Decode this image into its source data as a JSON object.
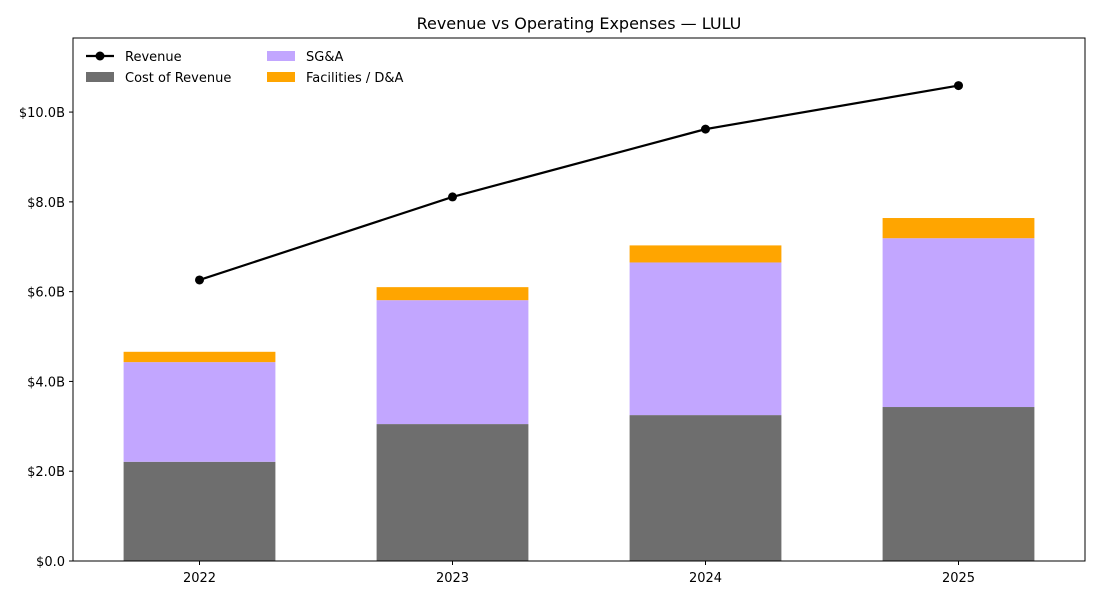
{
  "chart_data": {
    "type": "bar",
    "title": "Revenue vs Operating Expenses — LULU",
    "xlabel": "",
    "ylabel": "",
    "categories": [
      "2022",
      "2023",
      "2024",
      "2025"
    ],
    "ylim": [
      0,
      11.65
    ],
    "yticks": [
      0,
      2,
      4,
      6,
      8,
      10
    ],
    "ytick_labels": [
      "$0.0",
      "$2.0B",
      "$4.0B",
      "$6.0B",
      "$8.0B",
      "$10.0B"
    ],
    "grid": false,
    "legend_position": "top-left",
    "series": [
      {
        "name": "Cost of Revenue",
        "kind": "bar",
        "color": "#6e6e6e",
        "values": [
          2.21,
          3.05,
          3.25,
          3.43
        ]
      },
      {
        "name": "SG&A",
        "kind": "bar",
        "color": "#c2a6ff",
        "values": [
          2.22,
          2.76,
          3.4,
          3.76
        ]
      },
      {
        "name": "Facilities / D&A",
        "kind": "bar",
        "color": "#ffa500",
        "values": [
          0.23,
          0.29,
          0.38,
          0.45
        ]
      },
      {
        "name": "Revenue",
        "kind": "line",
        "color": "#000000",
        "values": [
          6.26,
          8.11,
          9.62,
          10.59
        ]
      }
    ],
    "legend": [
      {
        "label": "Revenue",
        "kind": "line",
        "color": "#000000"
      },
      {
        "label": "Cost of Revenue",
        "kind": "bar",
        "color": "#6e6e6e"
      },
      {
        "label": "SG&A",
        "kind": "bar",
        "color": "#c2a6ff"
      },
      {
        "label": "Facilities / D&A",
        "kind": "bar",
        "color": "#ffa500"
      }
    ]
  }
}
